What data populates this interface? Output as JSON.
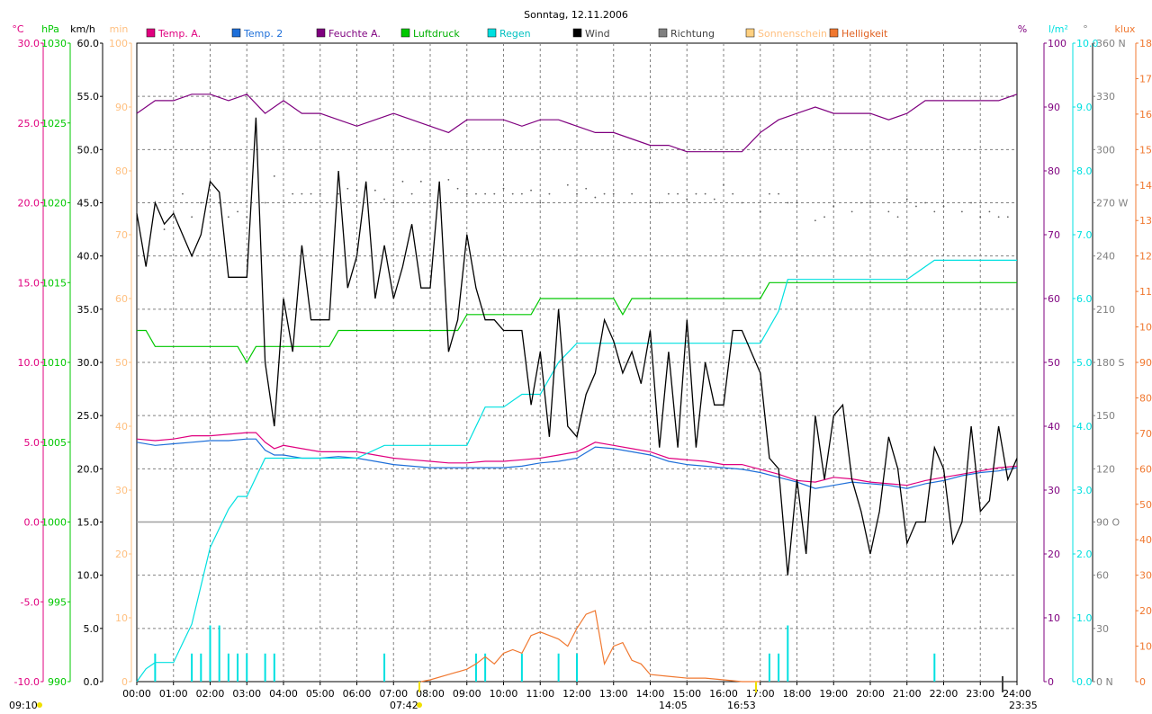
{
  "chart_data": {
    "type": "line",
    "title": "Sonntag, 12.11.2006",
    "xlabel": "",
    "x_ticks": [
      "00:00",
      "01:00",
      "02:00",
      "03:00",
      "04:00",
      "05:00",
      "06:00",
      "07:00",
      "08:00",
      "09:00",
      "10:00",
      "11:00",
      "12:00",
      "13:00",
      "14:00",
      "15:00",
      "16:00",
      "17:00",
      "18:00",
      "19:00",
      "20:00",
      "21:00",
      "22:00",
      "23:00",
      "24:00"
    ],
    "legend": [
      {
        "label": "Temp. A.",
        "color": "#e0007f"
      },
      {
        "label": "Temp. 2",
        "color": "#1e6fd9"
      },
      {
        "label": "Feuchte A.",
        "color": "#7f007f"
      },
      {
        "label": "Luftdruck",
        "color": "#00c800"
      },
      {
        "label": "Regen",
        "color": "#00e0e0"
      },
      {
        "label": "Wind",
        "color": "#000000"
      },
      {
        "label": "Richtung",
        "color": "#808080"
      },
      {
        "label": "Sonnenschein",
        "color": "#ffd080"
      },
      {
        "label": "Helligkeit",
        "color": "#f07830"
      }
    ],
    "axes": [
      {
        "unit": "°C",
        "color": "#e0007f",
        "ticks": [
          "30.0",
          "25.0",
          "20.0",
          "15.0",
          "10.0",
          "5.0",
          "0.0",
          "-5.0",
          "-10.0"
        ],
        "range": [
          -10,
          30
        ]
      },
      {
        "unit": "hPa",
        "color": "#00c800",
        "ticks": [
          "1030",
          "1025",
          "1020",
          "1015",
          "1010",
          "1005",
          "1000",
          "995",
          "990"
        ],
        "range": [
          990,
          1030
        ]
      },
      {
        "unit": "km/h",
        "color": "#000000",
        "ticks": [
          "60.0",
          "55.0",
          "50.0",
          "45.0",
          "40.0",
          "35.0",
          "30.0",
          "25.0",
          "20.0",
          "15.0",
          "10.0",
          "5.0",
          "0.0"
        ],
        "range": [
          0,
          60
        ]
      },
      {
        "unit": "min",
        "color": "#ffc080",
        "ticks": [
          "100",
          "90",
          "80",
          "70",
          "60",
          "50",
          "40",
          "30",
          "20",
          "10",
          "0"
        ],
        "range": [
          0,
          100
        ]
      },
      {
        "unit": "%",
        "color": "#7f007f",
        "ticks": [
          "100",
          "90",
          "80",
          "70",
          "60",
          "50",
          "40",
          "30",
          "20",
          "10",
          "0"
        ],
        "range": [
          0,
          100
        ]
      },
      {
        "unit": "l/m²",
        "color": "#00e0e0",
        "ticks": [
          "10.0",
          "9.0",
          "8.0",
          "7.0",
          "6.0",
          "5.0",
          "4.0",
          "3.0",
          "2.0",
          "1.0",
          "0.0"
        ],
        "range": [
          0,
          10
        ]
      },
      {
        "unit": "°",
        "color": "#808080",
        "ticks": [
          "360 N",
          "330",
          "300",
          "270 W",
          "240",
          "210",
          "180 S",
          "150",
          "120",
          "90 O",
          "60",
          "30",
          "0 N"
        ],
        "range": [
          0,
          360
        ]
      },
      {
        "unit": "klux",
        "color": "#f07830",
        "ticks": [
          "180",
          "170",
          "160",
          "150",
          "140",
          "130",
          "120",
          "110",
          "100",
          "90",
          "80",
          "70",
          "60",
          "50",
          "40",
          "30",
          "20",
          "10",
          "0"
        ],
        "range": [
          0,
          180
        ]
      }
    ],
    "time_marks": {
      "left": "09:10",
      "sunrise": "07:42",
      "transit": "14:05",
      "sunset": "16:53",
      "right": "23:35"
    },
    "series": [
      {
        "name": "Temp. A.",
        "color": "#e0007f",
        "unit": "°C",
        "x": [
          0,
          0.5,
          1,
          1.5,
          2,
          2.5,
          3,
          3.25,
          3.5,
          3.75,
          4,
          4.5,
          5,
          5.5,
          6,
          6.5,
          7,
          7.5,
          8,
          8.5,
          9,
          9.5,
          10,
          10.5,
          11,
          11.5,
          12,
          12.5,
          13,
          13.5,
          14,
          14.5,
          15,
          15.5,
          16,
          16.5,
          17,
          17.5,
          18,
          18.5,
          19,
          19.5,
          20,
          20.5,
          21,
          21.5,
          22,
          22.5,
          23,
          23.5,
          24
        ],
        "values": [
          5.2,
          5.1,
          5.2,
          5.4,
          5.4,
          5.5,
          5.6,
          5.6,
          5.0,
          4.6,
          4.8,
          4.6,
          4.4,
          4.4,
          4.4,
          4.2,
          4.0,
          3.9,
          3.8,
          3.7,
          3.7,
          3.8,
          3.8,
          3.9,
          4.0,
          4.2,
          4.4,
          5.0,
          4.8,
          4.6,
          4.4,
          4.0,
          3.9,
          3.8,
          3.6,
          3.6,
          3.3,
          3.0,
          2.6,
          2.5,
          2.8,
          2.7,
          2.5,
          2.4,
          2.3,
          2.6,
          2.8,
          3.0,
          3.2,
          3.4,
          3.5
        ]
      },
      {
        "name": "Temp. 2",
        "color": "#1e6fd9",
        "unit": "°C",
        "x": [
          0,
          0.5,
          1,
          1.5,
          2,
          2.5,
          3,
          3.25,
          3.5,
          3.75,
          4,
          4.5,
          5,
          5.5,
          6,
          6.5,
          7,
          7.5,
          8,
          8.5,
          9,
          9.5,
          10,
          10.5,
          11,
          11.5,
          12,
          12.5,
          13,
          13.5,
          14,
          14.5,
          15,
          15.5,
          16,
          16.5,
          17,
          17.5,
          18,
          18.5,
          19,
          19.5,
          20,
          20.5,
          21,
          21.5,
          22,
          22.5,
          23,
          23.5,
          24
        ],
        "values": [
          5.0,
          4.8,
          4.9,
          5.0,
          5.1,
          5.1,
          5.2,
          5.2,
          4.5,
          4.2,
          4.2,
          4.0,
          4.0,
          4.1,
          4.0,
          3.8,
          3.6,
          3.5,
          3.4,
          3.4,
          3.4,
          3.4,
          3.4,
          3.5,
          3.7,
          3.8,
          4.0,
          4.7,
          4.6,
          4.4,
          4.2,
          3.8,
          3.6,
          3.5,
          3.4,
          3.3,
          3.1,
          2.8,
          2.5,
          2.1,
          2.3,
          2.5,
          2.4,
          2.3,
          2.1,
          2.4,
          2.6,
          2.9,
          3.1,
          3.2,
          3.4
        ]
      },
      {
        "name": "Feuchte A.",
        "color": "#7f007f",
        "unit": "%",
        "x": [
          0,
          0.5,
          1,
          1.5,
          2,
          2.5,
          3,
          3.5,
          4,
          4.5,
          5,
          5.5,
          6,
          6.5,
          7,
          7.5,
          8,
          8.5,
          9,
          9.5,
          10,
          10.5,
          11,
          11.5,
          12,
          12.5,
          13,
          13.5,
          14,
          14.5,
          15,
          15.5,
          16,
          16.5,
          17,
          17.5,
          18,
          18.5,
          19,
          19.5,
          20,
          20.5,
          21,
          21.5,
          22,
          22.5,
          23,
          23.5,
          24
        ],
        "values": [
          89,
          91,
          91,
          92,
          92,
          91,
          92,
          89,
          91,
          89,
          89,
          88,
          87,
          88,
          89,
          88,
          87,
          86,
          88,
          88,
          88,
          87,
          88,
          88,
          87,
          86,
          86,
          85,
          84,
          84,
          83,
          83,
          83,
          83,
          86,
          88,
          89,
          90,
          89,
          89,
          89,
          88,
          89,
          91,
          91,
          91,
          91,
          91,
          92
        ]
      },
      {
        "name": "Luftdruck",
        "color": "#00c800",
        "unit": "hPa",
        "x": [
          0,
          0.25,
          0.5,
          1,
          2,
          2.75,
          3,
          3.25,
          4,
          5,
          5.25,
          5.5,
          6,
          7,
          8,
          8.75,
          9,
          9.25,
          10,
          10.75,
          11,
          12,
          13,
          13.25,
          13.5,
          14,
          15,
          16,
          17,
          17.25,
          18,
          19,
          20,
          21,
          22,
          23,
          24
        ],
        "values": [
          1012,
          1012,
          1011,
          1011,
          1011,
          1011,
          1010,
          1011,
          1011,
          1011,
          1011,
          1012,
          1012,
          1012,
          1012,
          1012,
          1013,
          1013,
          1013,
          1013,
          1014,
          1014,
          1014,
          1013,
          1014,
          1014,
          1014,
          1014,
          1014,
          1015,
          1015,
          1015,
          1015,
          1015,
          1015,
          1015,
          1015
        ]
      },
      {
        "name": "Regen",
        "color": "#00e0e0",
        "unit": "l/m²",
        "x": [
          0,
          0.25,
          0.5,
          1,
          1.25,
          1.5,
          1.75,
          2,
          2.25,
          2.5,
          2.75,
          3,
          3.25,
          3.5,
          3.75,
          4,
          5,
          6,
          6.75,
          7,
          8,
          9,
          9.5,
          10,
          10.5,
          11,
          11.5,
          12,
          13,
          14,
          15,
          16,
          17,
          17.5,
          17.75,
          18,
          19,
          20,
          21,
          21.75,
          22,
          23,
          24
        ],
        "values": [
          0,
          0.2,
          0.3,
          0.3,
          0.6,
          0.9,
          1.5,
          2.1,
          2.4,
          2.7,
          2.9,
          2.9,
          3.2,
          3.5,
          3.5,
          3.5,
          3.5,
          3.5,
          3.7,
          3.7,
          3.7,
          3.7,
          4.3,
          4.3,
          4.5,
          4.5,
          5.0,
          5.3,
          5.3,
          5.3,
          5.3,
          5.3,
          5.3,
          5.8,
          6.3,
          6.3,
          6.3,
          6.3,
          6.3,
          6.6,
          6.6,
          6.6,
          6.6
        ]
      },
      {
        "name": "Wind",
        "color": "#000000",
        "unit": "km/h",
        "x": [
          0,
          0.25,
          0.5,
          0.75,
          1,
          1.25,
          1.5,
          1.75,
          2,
          2.25,
          2.5,
          2.75,
          3,
          3.25,
          3.5,
          3.75,
          4,
          4.25,
          4.5,
          4.75,
          5,
          5.25,
          5.5,
          5.75,
          6,
          6.25,
          6.5,
          6.75,
          7,
          7.25,
          7.5,
          7.75,
          8,
          8.25,
          8.5,
          8.75,
          9,
          9.25,
          9.5,
          9.75,
          10,
          10.25,
          10.5,
          10.75,
          11,
          11.25,
          11.5,
          11.75,
          12,
          12.25,
          12.5,
          12.75,
          13,
          13.25,
          13.5,
          13.75,
          14,
          14.25,
          14.5,
          14.75,
          15,
          15.25,
          15.5,
          15.75,
          16,
          16.25,
          16.5,
          16.75,
          17,
          17.25,
          17.5,
          17.75,
          18,
          18.25,
          18.5,
          18.75,
          19,
          19.25,
          19.5,
          19.75,
          20,
          20.25,
          20.5,
          20.75,
          21,
          21.25,
          21.5,
          21.75,
          22,
          22.25,
          22.5,
          22.75,
          23,
          23.25,
          23.5,
          23.75,
          24
        ],
        "values": [
          44,
          39,
          45,
          43,
          44,
          42,
          40,
          42,
          47,
          46,
          38,
          38,
          38,
          53,
          30,
          24,
          36,
          31,
          41,
          34,
          34,
          34,
          48,
          37,
          40,
          47,
          36,
          41,
          36,
          39,
          43,
          37,
          37,
          47,
          31,
          34,
          42,
          37,
          34,
          34,
          33,
          33,
          33,
          26,
          31,
          23,
          35,
          24,
          23,
          27,
          29,
          34,
          32,
          29,
          31,
          28,
          33,
          22,
          31,
          22,
          34,
          22,
          30,
          26,
          26,
          33,
          33,
          31,
          29,
          21,
          20,
          10,
          19,
          12,
          25,
          19,
          25,
          26,
          19,
          16,
          12,
          16,
          23,
          20,
          13,
          15,
          15,
          22,
          20,
          13,
          15,
          24,
          16,
          17,
          24,
          19,
          21
        ]
      },
      {
        "name": "Helligkeit",
        "color": "#f07830",
        "unit": "klux",
        "x": [
          7.75,
          8,
          8.5,
          9,
          9.25,
          9.5,
          9.75,
          10,
          10.25,
          10.5,
          10.75,
          11,
          11.25,
          11.5,
          11.75,
          12,
          12.25,
          12.5,
          12.75,
          13,
          13.25,
          13.5,
          13.75,
          14,
          14.5,
          15,
          15.5,
          16,
          16.5,
          17
        ],
        "values": [
          0,
          0.5,
          2,
          3.5,
          5,
          7,
          5,
          8,
          9,
          8,
          13,
          14,
          13,
          12,
          10,
          15,
          19,
          20,
          5,
          10,
          11,
          6,
          5,
          2,
          1.5,
          1,
          1,
          0.5,
          0,
          0
        ]
      }
    ],
    "rain_bars": [
      {
        "time": 0.5,
        "value": 0.2
      },
      {
        "time": 1.5,
        "value": 0.2
      },
      {
        "time": 1.75,
        "value": 0.2
      },
      {
        "time": 2.0,
        "value": 0.4
      },
      {
        "time": 2.25,
        "value": 0.4
      },
      {
        "time": 2.5,
        "value": 0.2
      },
      {
        "time": 2.75,
        "value": 0.2
      },
      {
        "time": 3.0,
        "value": 0.2
      },
      {
        "time": 3.5,
        "value": 0.2
      },
      {
        "time": 3.75,
        "value": 0.2
      },
      {
        "time": 6.75,
        "value": 0.2
      },
      {
        "time": 9.25,
        "value": 0.2
      },
      {
        "time": 9.5,
        "value": 0.2
      },
      {
        "time": 10.5,
        "value": 0.2
      },
      {
        "time": 11.5,
        "value": 0.2
      },
      {
        "time": 12.0,
        "value": 0.2
      },
      {
        "time": 17.25,
        "value": 0.2
      },
      {
        "time": 17.5,
        "value": 0.2
      },
      {
        "time": 17.75,
        "value": 0.4
      },
      {
        "time": 21.75,
        "value": 0.2
      }
    ],
    "direction_points": {
      "times": [
        0.75,
        1.25,
        1.5,
        1.75,
        2.0,
        2.25,
        2.5,
        2.75,
        3.0,
        3.5,
        3.75,
        4.25,
        4.5,
        4.75,
        5.0,
        5.5,
        5.75,
        6.0,
        6.5,
        6.75,
        7.0,
        7.25,
        7.5,
        7.75,
        8.0,
        8.25,
        8.5,
        8.75,
        9.0,
        9.25,
        9.5,
        9.75,
        10.0,
        10.25,
        10.5,
        10.75,
        11.0,
        11.25,
        11.75,
        12.0,
        12.25,
        12.5,
        12.75,
        13.0,
        13.5,
        14.0,
        14.25,
        14.5,
        14.75,
        15.0,
        15.25,
        15.5,
        15.75,
        16.0,
        16.25,
        16.5,
        17.0,
        17.25,
        17.5,
        17.75,
        18.0,
        18.5,
        18.75,
        19.0,
        19.5,
        19.75,
        20.0,
        20.5,
        20.75,
        21.0,
        21.25,
        21.5,
        21.75,
        22.0,
        22.5,
        22.75,
        23.0,
        23.25,
        23.5,
        23.75
      ],
      "values": [
        255,
        275,
        262,
        270,
        272,
        270,
        262,
        265,
        262,
        270,
        285,
        275,
        275,
        275,
        275,
        275,
        278,
        277,
        277,
        272,
        270,
        282,
        275,
        282,
        275,
        278,
        283,
        278,
        275,
        275,
        275,
        275,
        278,
        275,
        275,
        277,
        270,
        275,
        280,
        275,
        278,
        273,
        275,
        275,
        275,
        270,
        270,
        275,
        275,
        272,
        275,
        275,
        272,
        280,
        275,
        270,
        265,
        275,
        275,
        270,
        270,
        260,
        262,
        268,
        265,
        270,
        270,
        265,
        262,
        272,
        268,
        270,
        265,
        268,
        265,
        270,
        262,
        265,
        262,
        262
      ]
    }
  }
}
